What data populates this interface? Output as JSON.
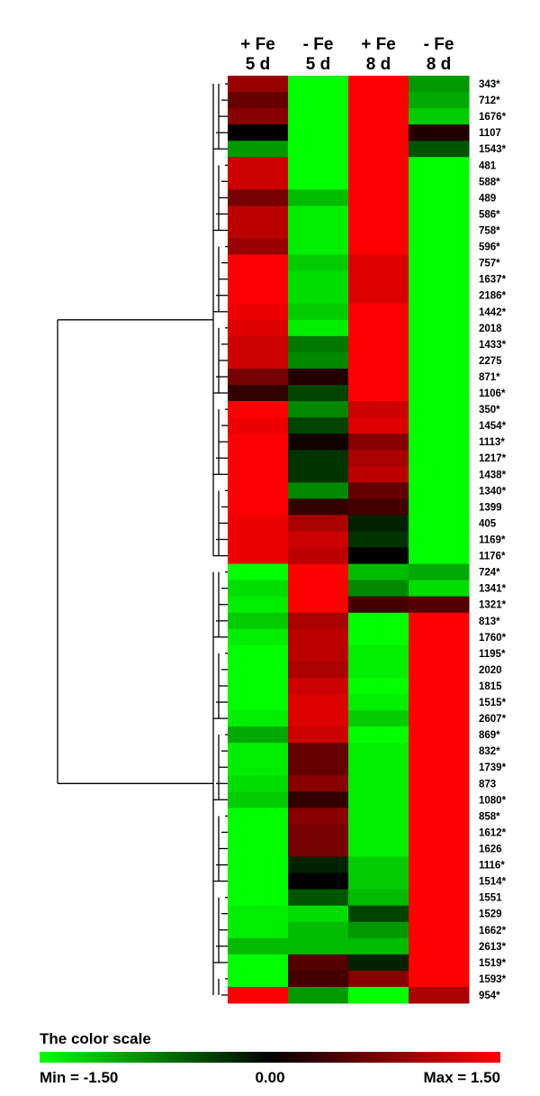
{
  "chart_data": {
    "type": "heatmap",
    "columns": [
      {
        "line1": "+ Fe",
        "line2": "5 d"
      },
      {
        "line1": "- Fe",
        "line2": "5 d"
      },
      {
        "line1": "+ Fe",
        "line2": "8 d"
      },
      {
        "line1": "- Fe",
        "line2": "8 d"
      }
    ],
    "rows": [
      "343*",
      "712*",
      "1676*",
      "1107",
      "1543*",
      "481",
      "588*",
      "489",
      "586*",
      "758*",
      "596*",
      "757*",
      "1637*",
      "2186*",
      "1442*",
      "2018",
      "1433*",
      "2275",
      "871*",
      "1106*",
      "350*",
      "1454*",
      "1113*",
      "1217*",
      "1438*",
      "1340*",
      "1399",
      "405",
      "1169*",
      "1176*",
      "724*",
      "1341*",
      "1321*",
      "813*",
      "1760*",
      "1195*",
      "2020",
      "1815",
      "1515*",
      "2607*",
      "869*",
      "832*",
      "1739*",
      "873",
      "1080*",
      "858*",
      "1612*",
      "1626",
      "1116*",
      "1514*",
      "1551",
      "1529",
      "1662*",
      "2613*",
      "1519*",
      "1593*",
      "954*"
    ],
    "values": [
      [
        0.9,
        -1.5,
        1.5,
        -0.9
      ],
      [
        0.6,
        -1.5,
        1.5,
        -1.0
      ],
      [
        0.8,
        -1.5,
        1.5,
        -1.2
      ],
      [
        0.0,
        -1.5,
        1.5,
        0.2
      ],
      [
        -0.9,
        -1.5,
        1.5,
        -0.5
      ],
      [
        1.2,
        -1.5,
        1.5,
        -1.5
      ],
      [
        1.2,
        -1.5,
        1.5,
        -1.5
      ],
      [
        0.7,
        -1.1,
        1.5,
        -1.5
      ],
      [
        1.1,
        -1.4,
        1.5,
        -1.5
      ],
      [
        1.1,
        -1.4,
        1.5,
        -1.5
      ],
      [
        0.9,
        -1.4,
        1.5,
        -1.5
      ],
      [
        1.5,
        -1.2,
        1.3,
        -1.5
      ],
      [
        1.5,
        -1.3,
        1.3,
        -1.5
      ],
      [
        1.5,
        -1.3,
        1.3,
        -1.5
      ],
      [
        1.4,
        -1.2,
        1.5,
        -1.5
      ],
      [
        1.3,
        -1.4,
        1.5,
        -1.5
      ],
      [
        1.2,
        -0.7,
        1.5,
        -1.5
      ],
      [
        1.2,
        -0.8,
        1.5,
        -1.5
      ],
      [
        0.7,
        0.2,
        1.5,
        -1.5
      ],
      [
        0.3,
        -0.4,
        1.5,
        -1.5
      ],
      [
        1.5,
        -0.8,
        1.2,
        -1.5
      ],
      [
        1.4,
        -0.4,
        1.3,
        -1.5
      ],
      [
        1.5,
        0.1,
        0.8,
        -1.5
      ],
      [
        1.5,
        -0.3,
        1.0,
        -1.5
      ],
      [
        1.5,
        -0.3,
        1.1,
        -1.5
      ],
      [
        1.5,
        -0.8,
        0.6,
        -1.5
      ],
      [
        1.5,
        0.3,
        0.4,
        -1.5
      ],
      [
        1.4,
        1.0,
        -0.2,
        -1.5
      ],
      [
        1.4,
        1.2,
        -0.3,
        -1.5
      ],
      [
        1.4,
        1.1,
        0.0,
        -1.5
      ],
      [
        -1.5,
        1.5,
        -1.1,
        -1.0
      ],
      [
        -1.3,
        1.5,
        -0.8,
        -1.3
      ],
      [
        -1.4,
        1.5,
        0.4,
        0.5
      ],
      [
        -1.2,
        1.0,
        -1.5,
        1.5
      ],
      [
        -1.4,
        1.1,
        -1.5,
        1.5
      ],
      [
        -1.5,
        1.1,
        -1.4,
        1.5
      ],
      [
        -1.5,
        1.0,
        -1.4,
        1.5
      ],
      [
        -1.5,
        1.2,
        -1.5,
        1.5
      ],
      [
        -1.5,
        1.3,
        -1.4,
        1.5
      ],
      [
        -1.4,
        1.3,
        -1.2,
        1.5
      ],
      [
        -1.0,
        1.2,
        -1.5,
        1.5
      ],
      [
        -1.4,
        0.6,
        -1.4,
        1.5
      ],
      [
        -1.4,
        0.6,
        -1.4,
        1.5
      ],
      [
        -1.3,
        0.8,
        -1.4,
        1.5
      ],
      [
        -1.2,
        0.3,
        -1.4,
        1.5
      ],
      [
        -1.5,
        0.8,
        -1.4,
        1.5
      ],
      [
        -1.5,
        0.7,
        -1.4,
        1.5
      ],
      [
        -1.5,
        0.7,
        -1.4,
        1.5
      ],
      [
        -1.5,
        -0.2,
        -1.2,
        1.5
      ],
      [
        -1.5,
        0.0,
        -1.2,
        1.5
      ],
      [
        -1.5,
        -0.5,
        -1.1,
        1.5
      ],
      [
        -1.4,
        -1.3,
        -0.4,
        1.5
      ],
      [
        -1.4,
        -1.1,
        -0.9,
        1.5
      ],
      [
        -1.1,
        -1.1,
        -1.1,
        1.5
      ],
      [
        -1.5,
        0.5,
        -0.2,
        1.5
      ],
      [
        -1.5,
        0.4,
        0.8,
        1.5
      ],
      [
        1.5,
        -0.9,
        -1.5,
        1.0
      ]
    ],
    "colorbar": {
      "title": "The color scale",
      "min_label": "Min = -1.50",
      "mid_label": "0.00",
      "max_label": "Max = 1.50",
      "min": -1.5,
      "max": 1.5,
      "min_color": "#00ff00",
      "mid_color": "#000000",
      "max_color": "#ff0000"
    },
    "dendrogram": {
      "side": "left",
      "main_split_after_row": 30
    }
  }
}
